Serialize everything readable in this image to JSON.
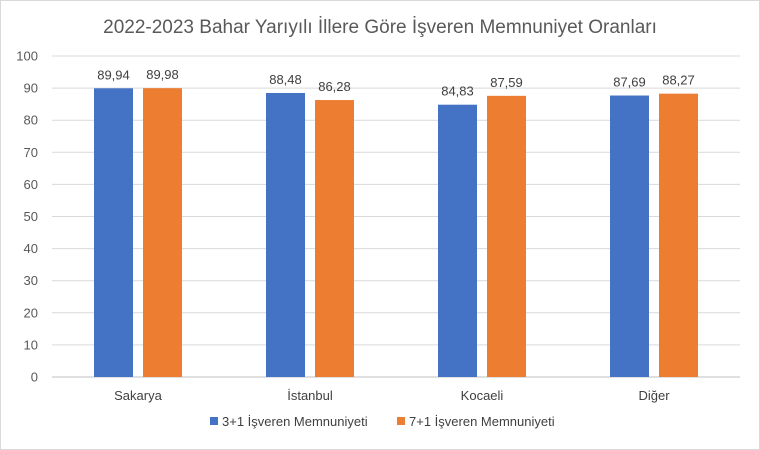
{
  "chart_data": {
    "type": "bar",
    "title": "2022-2023 Bahar Yarıyılı İllere Göre İşveren Memnuniyet Oranları",
    "categories": [
      "Sakarya",
      "İstanbul",
      "Kocaeli",
      "Diğer"
    ],
    "series": [
      {
        "name": "3+1 İşveren Memnuniyeti",
        "color": "#4472c4",
        "values": [
          89.94,
          88.48,
          84.83,
          87.69
        ],
        "labels": [
          "89,94",
          "88,48",
          "84,83",
          "87,69"
        ]
      },
      {
        "name": "7+1 İşveren Memnuniyeti",
        "color": "#ed7d31",
        "values": [
          89.98,
          86.28,
          87.59,
          88.27
        ],
        "labels": [
          "89,98",
          "86,28",
          "87,59",
          "88,27"
        ]
      }
    ],
    "ylim": [
      0,
      100
    ],
    "yticks": [
      0,
      10,
      20,
      30,
      40,
      50,
      60,
      70,
      80,
      90,
      100
    ],
    "grid": true,
    "legend": "bottom"
  }
}
